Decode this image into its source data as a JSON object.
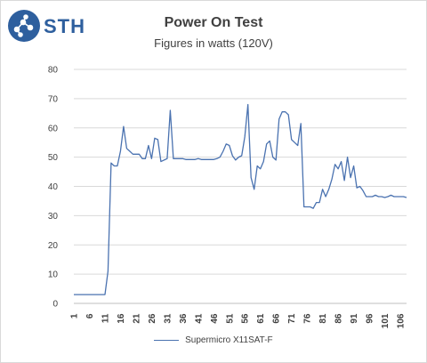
{
  "brand": {
    "logo_text": "STH",
    "accent_color": "#2e5f9e"
  },
  "chart_data": {
    "type": "line",
    "title": "Power On Test",
    "subtitle": "Figures in watts (120V)",
    "xlabel": "",
    "ylabel": "",
    "ylim": [
      0,
      80
    ],
    "y_ticks": [
      0,
      10,
      20,
      30,
      40,
      50,
      60,
      70,
      80
    ],
    "x_tick_labels": [
      "1",
      "6",
      "11",
      "16",
      "21",
      "26",
      "31",
      "36",
      "41",
      "46",
      "51",
      "56",
      "61",
      "66",
      "71",
      "76",
      "81",
      "86",
      "91",
      "96",
      "101",
      "106"
    ],
    "x_tick_start": 1,
    "x_tick_step": 5,
    "grid": "horizontal",
    "legend_position": "bottom",
    "series": [
      {
        "name": "Supermicro X11SAT-F",
        "color": "#4a72b0",
        "x": [
          1,
          2,
          3,
          4,
          5,
          6,
          7,
          8,
          9,
          10,
          11,
          12,
          13,
          14,
          15,
          16,
          17,
          18,
          19,
          20,
          21,
          22,
          23,
          24,
          25,
          26,
          27,
          28,
          29,
          30,
          31,
          32,
          33,
          34,
          35,
          36,
          37,
          38,
          39,
          40,
          41,
          42,
          43,
          44,
          45,
          46,
          47,
          48,
          49,
          50,
          51,
          52,
          53,
          54,
          55,
          56,
          57,
          58,
          59,
          60,
          61,
          62,
          63,
          64,
          65,
          66,
          67,
          68,
          69,
          70,
          71,
          72,
          73,
          74,
          75,
          76,
          77,
          78,
          79,
          80,
          81,
          82,
          83,
          84,
          85,
          86,
          87,
          88,
          89,
          90,
          91,
          92,
          93,
          94,
          95,
          96,
          97,
          98,
          99,
          100,
          101,
          102,
          103,
          104,
          105,
          106,
          107,
          108
        ],
        "values": [
          3,
          3,
          3,
          3,
          3,
          3,
          3,
          3,
          3,
          3,
          3,
          11,
          48,
          47,
          47,
          52,
          60.5,
          53,
          52,
          51,
          51,
          51,
          49.5,
          49.5,
          54,
          49.5,
          56.5,
          56,
          48.5,
          49,
          49.5,
          66,
          49.5,
          49.5,
          49.5,
          49.5,
          49.2,
          49.2,
          49.2,
          49.2,
          49.5,
          49.2,
          49.2,
          49.2,
          49.2,
          49.2,
          49.5,
          50,
          52,
          54.5,
          54,
          50.5,
          49,
          50,
          50.5,
          57,
          68,
          43,
          39,
          47,
          46,
          48.5,
          54.5,
          55.5,
          50,
          49,
          63,
          65.5,
          65.5,
          64.5,
          56,
          55,
          54,
          61.5,
          33,
          33,
          33,
          32.5,
          34.5,
          34.5,
          39,
          36.5,
          39,
          42.5,
          47.5,
          46,
          48.5,
          42,
          50,
          43,
          47,
          39.5,
          40,
          38.5,
          36.5,
          36.5,
          36.5,
          37,
          36.5,
          36.5,
          36.2,
          36.5,
          37,
          36.5,
          36.5,
          36.5,
          36.5,
          36.2
        ]
      }
    ]
  }
}
